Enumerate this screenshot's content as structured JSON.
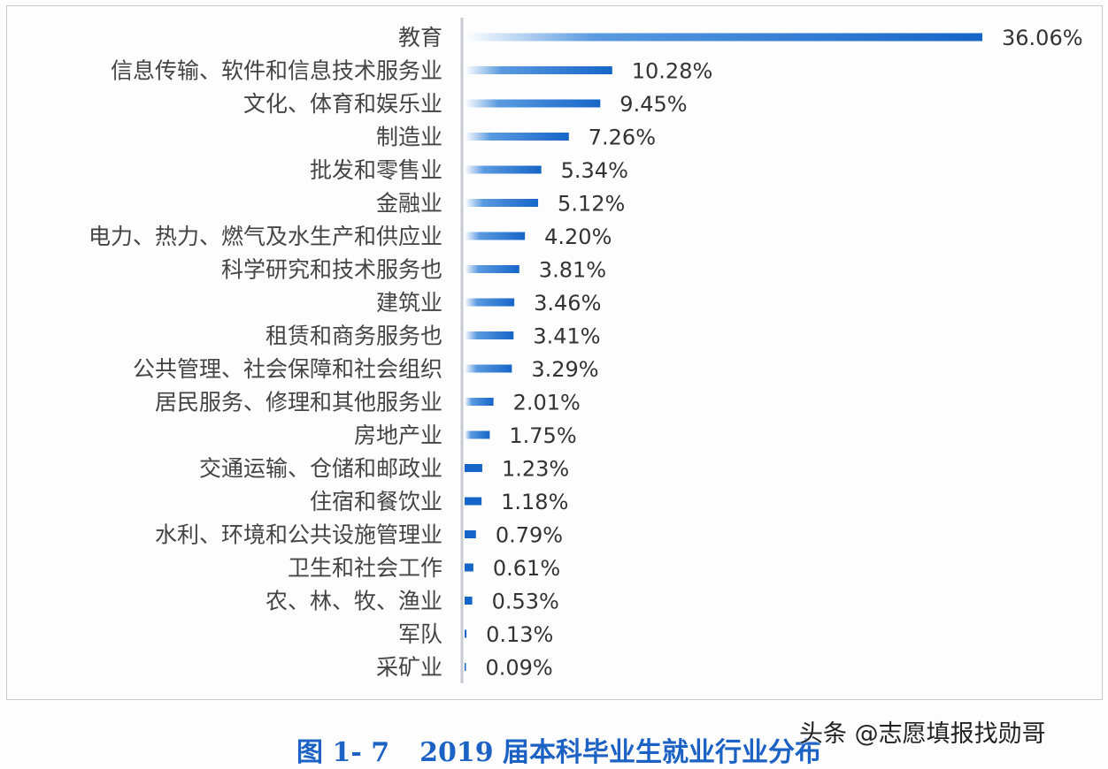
{
  "chart_data": {
    "type": "bar",
    "orientation": "horizontal",
    "categories": [
      "教育",
      "信息传输、软件和信息技术服务业",
      "文化、体育和娱乐业",
      "制造业",
      "批发和零售业",
      "金融业",
      "电力、热力、燃气及水生产和供应业",
      "科学研究和技术服务也",
      "建筑业",
      "租赁和商务服务也",
      "公共管理、社会保障和社会组织",
      "居民服务、修理和其他服务业",
      "房地产业",
      "交通运输、仓储和邮政业",
      "住宿和餐饮业",
      "水利、环境和公共设施管理业",
      "卫生和社会工作",
      "农、林、牧、渔业",
      "军队",
      "采矿业"
    ],
    "values": [
      36.06,
      10.28,
      9.45,
      7.26,
      5.34,
      5.12,
      4.2,
      3.81,
      3.46,
      3.41,
      3.29,
      2.01,
      1.75,
      1.23,
      1.18,
      0.79,
      0.61,
      0.53,
      0.13,
      0.09
    ],
    "data_labels": [
      "36.06%",
      "10.28%",
      "9.45%",
      "7.26%",
      "5.34%",
      "5.12%",
      "4.20%",
      "3.81%",
      "3.46%",
      "3.41%",
      "3.29%",
      "2.01%",
      "1.75%",
      "1.23%",
      "1.18%",
      "0.79%",
      "0.61%",
      "0.53%",
      "0.13%",
      "0.09%"
    ],
    "unit": "%",
    "xlim": [
      0,
      36.06
    ],
    "grid": false,
    "bar_color": "#1565c8",
    "bar_gradient_start": "#ffffff",
    "title": "图 1- 7 2019 届本科毕业生就业行业分布"
  },
  "caption": {
    "fig": "图 1- 7",
    "text": "2019 届本科毕业生就业行业分布"
  },
  "watermark": "头条 @志愿填报找勋哥"
}
